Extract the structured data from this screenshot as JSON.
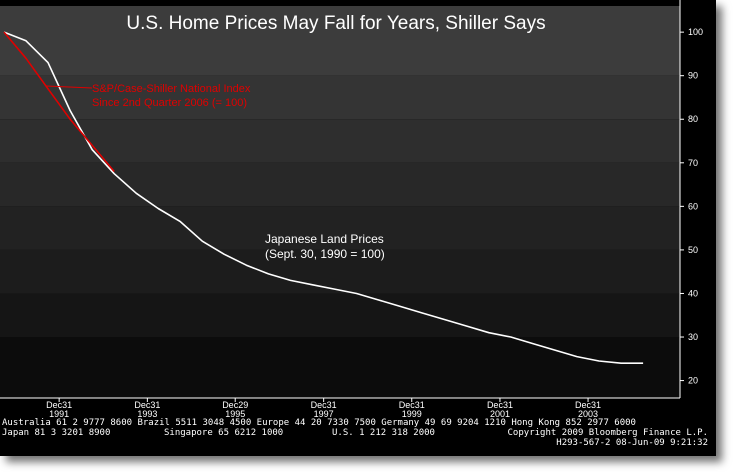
{
  "chart_data": {
    "type": "line",
    "title": "U.S. Home Prices May Fall for Years, Shiller Says",
    "ylim": [
      16,
      106
    ],
    "y_ticks": [
      "100",
      "90",
      "80",
      "70",
      "60",
      "50",
      "40",
      "30",
      "20"
    ],
    "x_ticks": [
      {
        "line1": "Dec31",
        "line2": "1991"
      },
      {
        "line1": "Dec31",
        "line2": "1993"
      },
      {
        "line1": "Dec29",
        "line2": "1995"
      },
      {
        "line1": "Dec31",
        "line2": "1997"
      },
      {
        "line1": "Dec31",
        "line2": "1999"
      },
      {
        "line1": "Dec31",
        "line2": "2001"
      },
      {
        "line1": "Dec31",
        "line2": "2003"
      }
    ],
    "series": [
      {
        "name": "Japanese Land Prices",
        "color": "#ffffff",
        "x": [
          "1990-09-30",
          "1991-03-31",
          "1991-09-30",
          "1992-03-31",
          "1992-09-30",
          "1993-03-31",
          "1993-09-30",
          "1994-03-31",
          "1994-09-30",
          "1995-03-31",
          "1995-09-30",
          "1996-03-31",
          "1996-09-30",
          "1997-03-31",
          "1997-09-30",
          "1998-03-31",
          "1998-09-30",
          "1999-03-31",
          "1999-09-30",
          "2000-03-31",
          "2000-09-30",
          "2001-03-31",
          "2001-09-30",
          "2002-03-31",
          "2002-09-30",
          "2003-03-31",
          "2003-09-30",
          "2004-03-31",
          "2004-09-30",
          "2005-03-31"
        ],
        "values": [
          100,
          98,
          93,
          82,
          73,
          67.5,
          63,
          59.5,
          56.5,
          52,
          49,
          46.5,
          44.5,
          43,
          42,
          41,
          40,
          38.5,
          37,
          35.5,
          34,
          32.5,
          31,
          30,
          28.5,
          27,
          25.5,
          24.5,
          24,
          24
        ]
      },
      {
        "name": "S&P/Case-Shiller National Index",
        "color": "#e00000",
        "x": [
          "1990-09-30",
          "1991-03-31",
          "1991-09-30",
          "1992-03-31",
          "1992-09-30",
          "1993-03-31"
        ],
        "values": [
          100,
          94,
          87,
          80,
          74,
          68
        ]
      }
    ],
    "annotations": [
      {
        "text": "S&P/Case-Shiller National Index",
        "color": "#e00000"
      },
      {
        "text": "Since 2nd Quarter 2006 (= 100)",
        "color": "#e00000"
      },
      {
        "text": "Japanese Land Prices",
        "color": "#ffffff"
      },
      {
        "text": "(Sept. 30, 1990 = 100)",
        "color": "#ffffff"
      }
    ],
    "grid": false,
    "background_bands": true
  },
  "footer": {
    "row1": "Australia 61 2 9777 8600 Brazil 5511 3048 4500 Europe 44 20 7330 7500 Germany 49 69 9204 1210 Hong Kong 852 2977 6000",
    "row2_left": "Japan 81 3 3201 8900",
    "row2_mid": "Singapore 65 6212 1000",
    "row2_mid2": "U.S. 1 212 318 2000",
    "row2_right": "Copyright 2009 Bloomberg Finance L.P.",
    "row3_right": "H293-567-2 08-Jun-09  9:21:32"
  }
}
